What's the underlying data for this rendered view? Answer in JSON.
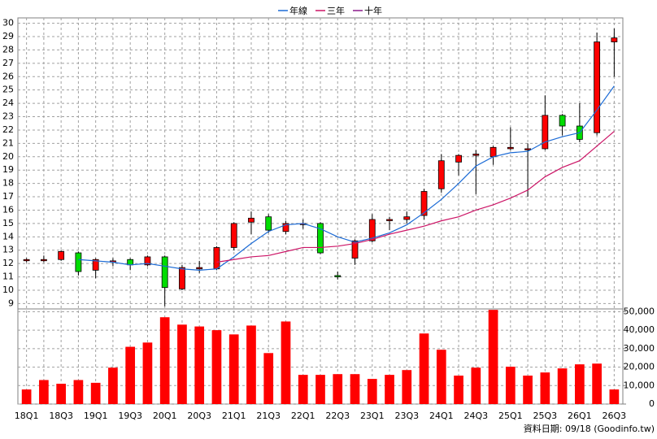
{
  "chart_data": {
    "type": "candlestick",
    "categories": [
      "18Q1",
      null,
      "18Q3",
      null,
      "19Q1",
      null,
      "19Q3",
      null,
      "20Q1",
      null,
      "20Q3",
      null,
      "21Q1",
      null,
      "21Q3",
      null,
      "22Q1",
      null,
      "22Q3",
      null,
      "23Q1",
      null,
      "23Q3",
      null,
      "24Q1",
      null,
      "24Q3",
      null,
      "25Q1",
      null,
      "25Q3",
      null,
      "26Q1",
      null,
      "26Q3"
    ],
    "open": [
      12.3,
      12.3,
      12.3,
      12.8,
      11.5,
      12.2,
      12.3,
      11.9,
      12.5,
      10.1,
      11.6,
      11.6,
      13.2,
      15.1,
      15.5,
      14.4,
      15.0,
      15.0,
      11.1,
      12.4,
      13.7,
      15.3,
      15.3,
      15.6,
      17.6,
      19.6,
      20.1,
      20.0,
      20.6,
      20.6,
      20.6,
      23.1,
      22.3,
      21.8,
      28.6
    ],
    "high": [
      12.4,
      12.6,
      13.0,
      12.9,
      12.4,
      12.4,
      12.4,
      12.6,
      12.6,
      11.9,
      12.2,
      13.3,
      15.1,
      15.9,
      15.7,
      15.2,
      15.3,
      15.1,
      11.4,
      13.8,
      15.7,
      15.5,
      15.9,
      17.6,
      20.2,
      20.2,
      20.5,
      20.8,
      22.2,
      21.0,
      24.6,
      23.2,
      24.0,
      29.3,
      29.6
    ],
    "low": [
      12.1,
      12.1,
      12.2,
      11.1,
      10.9,
      11.8,
      11.5,
      11.8,
      8.8,
      10.0,
      11.3,
      11.5,
      13.0,
      14.2,
      14.3,
      14.2,
      14.6,
      12.7,
      10.8,
      11.9,
      13.6,
      14.5,
      15.0,
      15.3,
      17.3,
      18.6,
      17.2,
      19.4,
      20.5,
      17.0,
      20.5,
      21.6,
      21.1,
      21.6,
      26.0
    ],
    "close": [
      12.3,
      12.3,
      12.9,
      11.4,
      12.3,
      12.2,
      11.9,
      12.5,
      10.2,
      11.7,
      11.7,
      13.2,
      15.0,
      15.4,
      14.5,
      15.0,
      15.0,
      12.8,
      11.0,
      13.7,
      15.3,
      15.3,
      15.5,
      17.4,
      19.7,
      20.1,
      20.2,
      20.7,
      20.7,
      20.6,
      23.1,
      22.3,
      21.3,
      28.6,
      28.9
    ],
    "up_color": "#ff0000",
    "down_color": "#00dd00",
    "series": [
      {
        "name": "年線",
        "color": "#1c6bd6",
        "values": [
          null,
          null,
          null,
          12.3,
          12.2,
          12.1,
          11.9,
          12.0,
          11.8,
          11.6,
          11.5,
          11.6,
          12.5,
          13.5,
          14.4,
          14.9,
          15.0,
          14.6,
          14.0,
          13.6,
          13.9,
          14.3,
          14.9,
          15.8,
          16.8,
          18.0,
          19.3,
          20.0,
          20.3,
          20.4,
          21.1,
          21.5,
          21.8,
          23.5,
          25.3
        ]
      },
      {
        "name": "三年",
        "color": "#cc1466",
        "values": [
          null,
          null,
          null,
          null,
          null,
          null,
          null,
          null,
          null,
          null,
          null,
          12.1,
          12.3,
          12.5,
          12.6,
          12.9,
          13.2,
          13.2,
          13.3,
          13.5,
          13.8,
          14.2,
          14.5,
          14.8,
          15.2,
          15.5,
          16.0,
          16.4,
          16.9,
          17.5,
          18.5,
          19.2,
          19.7,
          20.8,
          21.9
        ]
      },
      {
        "name": "十年",
        "color": "#8b1a8b",
        "values": [
          null,
          null,
          null,
          null,
          null,
          null,
          null,
          null,
          null,
          null,
          null,
          null,
          null,
          null,
          null,
          null,
          null,
          null,
          null,
          null,
          null,
          null,
          null,
          null,
          null,
          null,
          null,
          null,
          null,
          null,
          null,
          null,
          null,
          null,
          null
        ]
      }
    ],
    "ylim": [
      8.6,
      30.4
    ],
    "yticks": [
      9,
      10,
      11,
      12,
      13,
      14,
      15,
      16,
      17,
      18,
      19,
      20,
      21,
      22,
      23,
      24,
      25,
      26,
      27,
      28,
      29,
      30
    ],
    "grid": true,
    "legend": "top",
    "volume": {
      "type": "bar",
      "color": "#ff0000",
      "values": [
        7900,
        13000,
        11000,
        13000,
        11500,
        19700,
        31000,
        33300,
        47000,
        43000,
        42000,
        40000,
        37700,
        42500,
        27600,
        44700,
        15800,
        15800,
        16200,
        16200,
        13600,
        15800,
        18400,
        38200,
        29400,
        15400,
        19700,
        51000,
        20200,
        15400,
        17100,
        19300,
        21500,
        21900,
        7900
      ],
      "ylim": [
        0,
        51500
      ],
      "yticks": [
        0,
        {
          "value": 10000,
          "label": "10,000"
        },
        {
          "value": 20000,
          "label": "20,000"
        },
        {
          "value": 30000,
          "label": "30,000"
        },
        {
          "value": 40000,
          "label": "40,000"
        },
        {
          "value": 50000,
          "label": "50,000"
        }
      ]
    },
    "source": "資料日期: 09/18 (Goodinfo.tw)"
  }
}
